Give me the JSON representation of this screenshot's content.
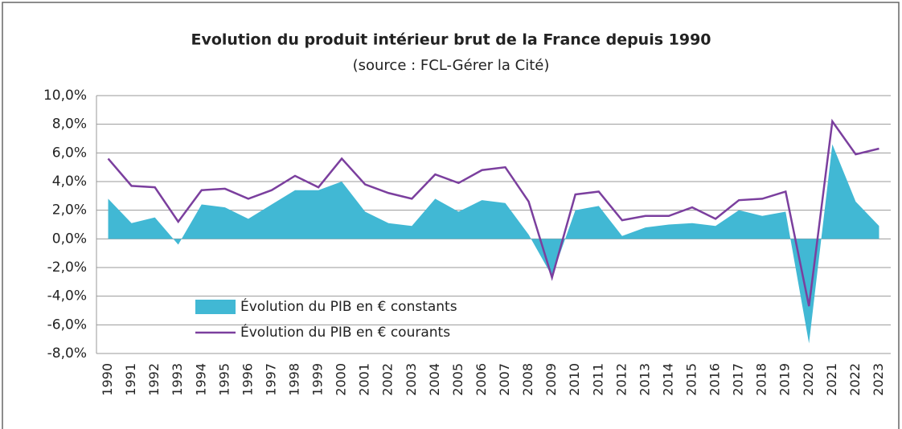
{
  "chart_data": {
    "type": "line",
    "title": "Evolution du produit intérieur brut de la France depuis 1990",
    "subtitle": "(source : FCL-Gérer la Cité)",
    "categories": [
      "1990",
      "1991",
      "1992",
      "1993",
      "1994",
      "1995",
      "1996",
      "1997",
      "1998",
      "1999",
      "2000",
      "2001",
      "2002",
      "2003",
      "2004",
      "2005",
      "2006",
      "2007",
      "2008",
      "2009",
      "2010",
      "2011",
      "2012",
      "2013",
      "2014",
      "2015",
      "2016",
      "2017",
      "2018",
      "2019",
      "2020",
      "2021",
      "2022",
      "2023"
    ],
    "series": [
      {
        "name": "Évolution du PIB en € constants",
        "type": "area",
        "color": "#41b8d4",
        "values": [
          2.8,
          1.1,
          1.5,
          -0.4,
          2.4,
          2.2,
          1.4,
          2.4,
          3.4,
          3.4,
          4.0,
          1.9,
          1.1,
          0.9,
          2.8,
          1.9,
          2.7,
          2.5,
          0.3,
          -2.6,
          2.0,
          2.3,
          0.2,
          0.8,
          1.0,
          1.1,
          0.9,
          2.0,
          1.6,
          1.9,
          -7.3,
          6.6,
          2.6,
          0.9
        ]
      },
      {
        "name": "Évolution du PIB en € courants",
        "type": "line",
        "color": "#7b3f9e",
        "values": [
          5.6,
          3.7,
          3.6,
          1.2,
          3.4,
          3.5,
          2.8,
          3.4,
          4.4,
          3.6,
          5.6,
          3.8,
          3.2,
          2.8,
          4.5,
          3.9,
          4.8,
          5.0,
          2.6,
          -2.7,
          3.1,
          3.3,
          1.3,
          1.6,
          1.6,
          2.2,
          1.4,
          2.7,
          2.8,
          3.3,
          -4.7,
          8.2,
          5.9,
          6.3
        ]
      }
    ],
    "ylim": [
      -8,
      10
    ],
    "yticks": [
      {
        "value": -8,
        "label": "-8,0%"
      },
      {
        "value": -6,
        "label": "-6,0%"
      },
      {
        "value": -4,
        "label": "-4,0%"
      },
      {
        "value": -2,
        "label": "-2,0%"
      },
      {
        "value": 0,
        "label": "0,0%"
      },
      {
        "value": 2,
        "label": "2,0%"
      },
      {
        "value": 4,
        "label": "4,0%"
      },
      {
        "value": 6,
        "label": "6,0%"
      },
      {
        "value": 8,
        "label": "8,0%"
      },
      {
        "value": 10,
        "label": "10,0%"
      }
    ],
    "grid": true,
    "legend": "lower left"
  }
}
